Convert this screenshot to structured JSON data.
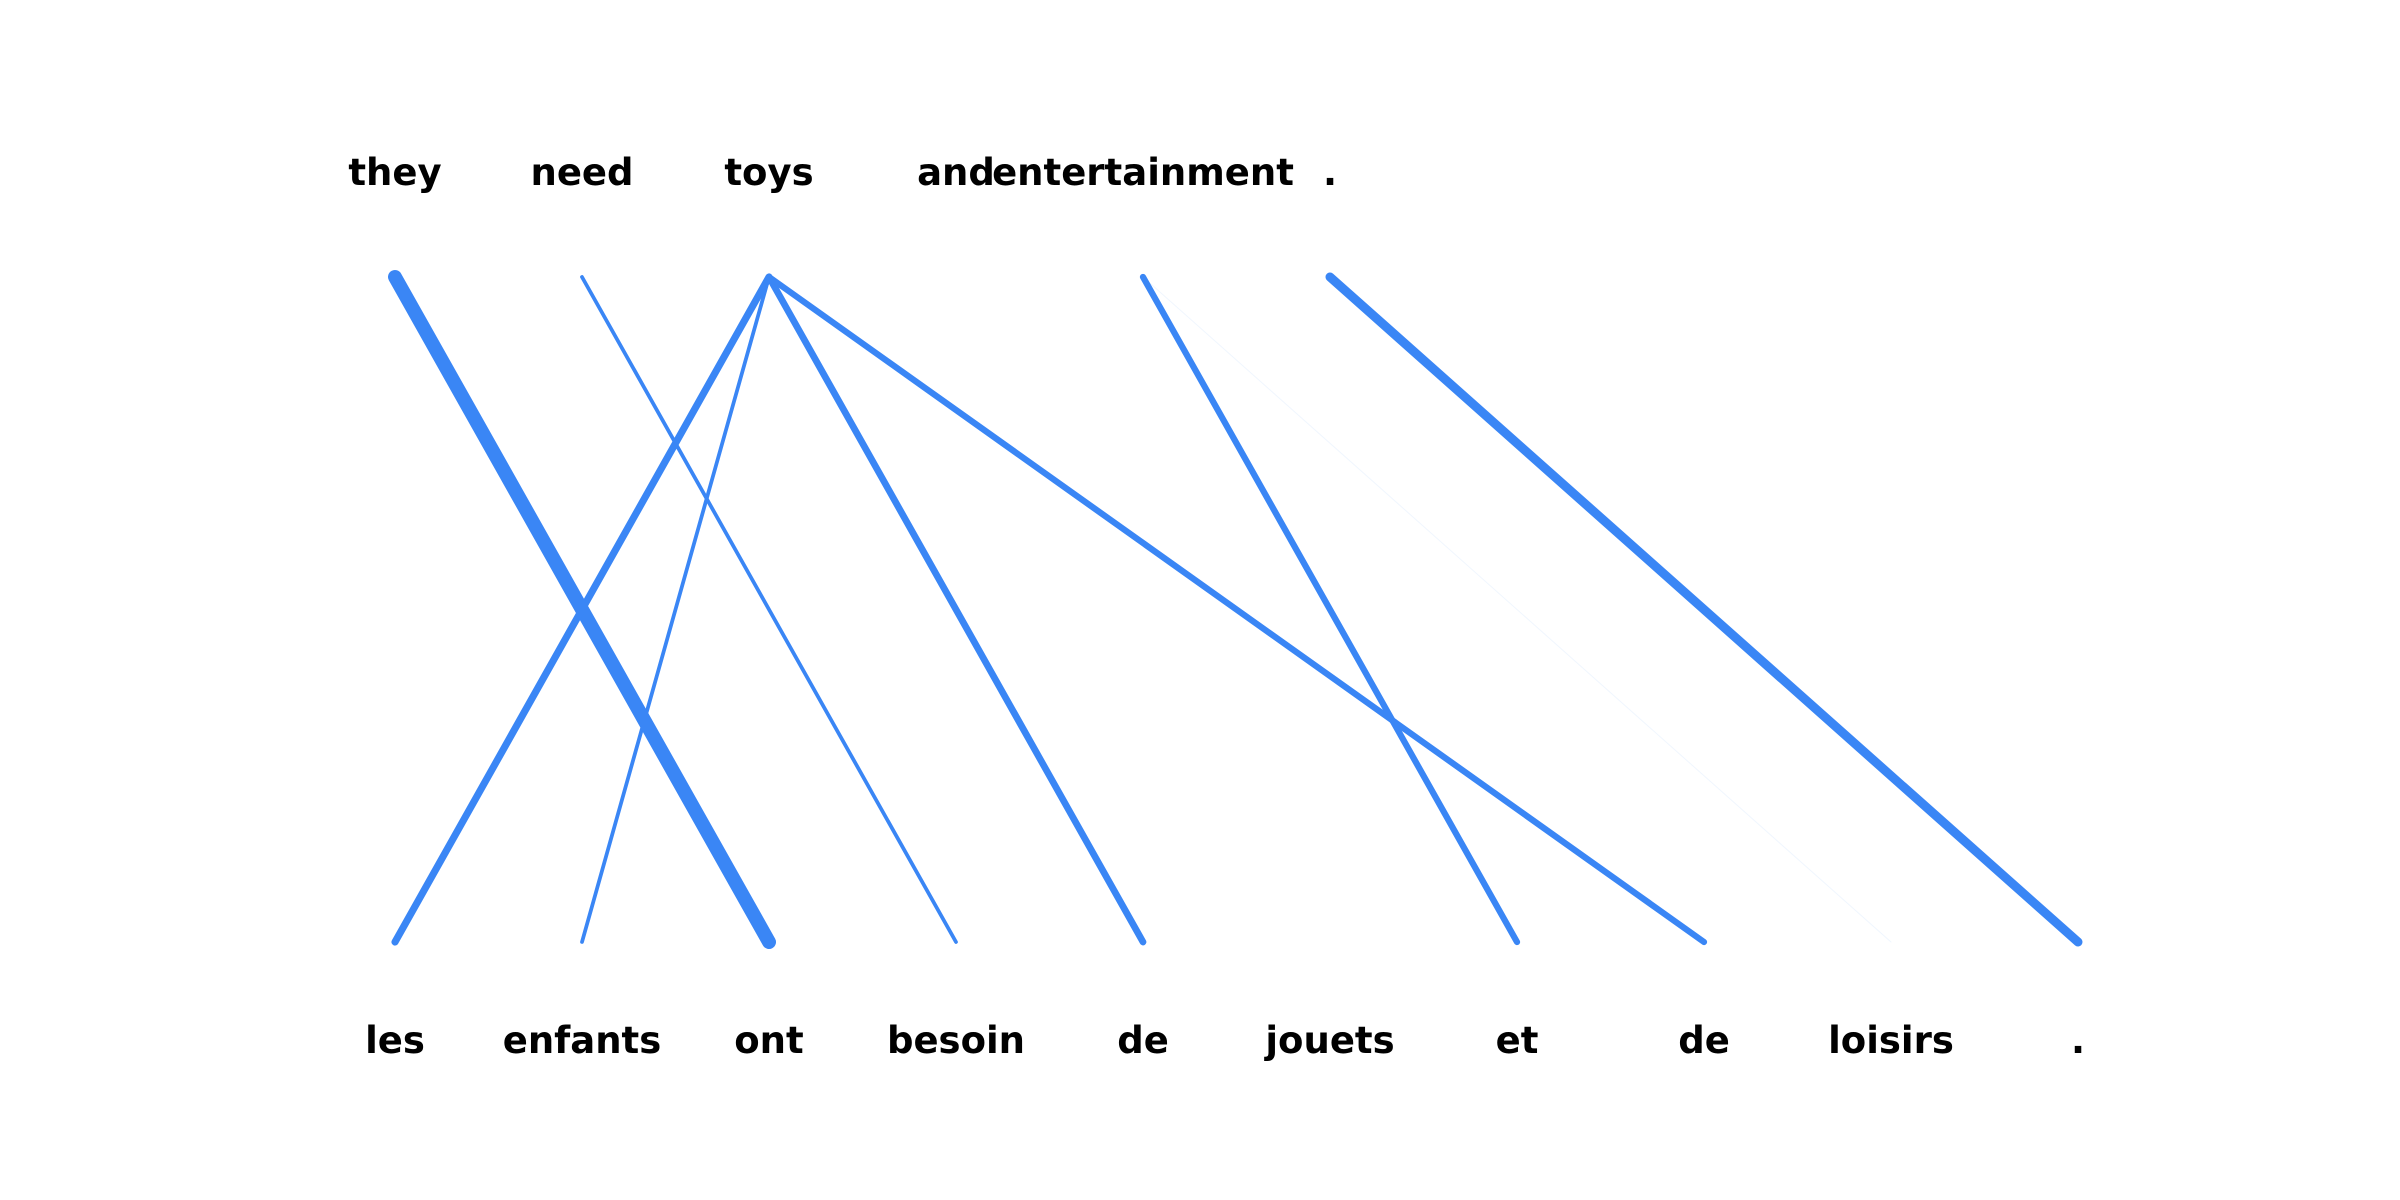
{
  "source_tokens": [
    "they",
    "need",
    "toys",
    "and",
    "entertainment",
    "."
  ],
  "target_tokens": [
    "les",
    "enfants",
    "ont",
    "besoin",
    "de",
    "jouets",
    "et",
    "de",
    "loisirs",
    "."
  ],
  "line_color": "#3a86f5",
  "alignments": [
    {
      "source": 0,
      "target": 2,
      "weight": 1.0
    },
    {
      "source": 1,
      "target": 3,
      "weight": 0.18
    },
    {
      "source": 2,
      "target": 0,
      "weight": 0.45
    },
    {
      "source": 2,
      "target": 1,
      "weight": 0.18
    },
    {
      "source": 2,
      "target": 4,
      "weight": 0.42
    },
    {
      "source": 2,
      "target": 7,
      "weight": 0.38
    },
    {
      "source": 4,
      "target": 6,
      "weight": 0.38
    },
    {
      "source": 4,
      "target": 8,
      "weight": 0.02
    },
    {
      "source": 5,
      "target": 9,
      "weight": 0.6
    }
  ]
}
